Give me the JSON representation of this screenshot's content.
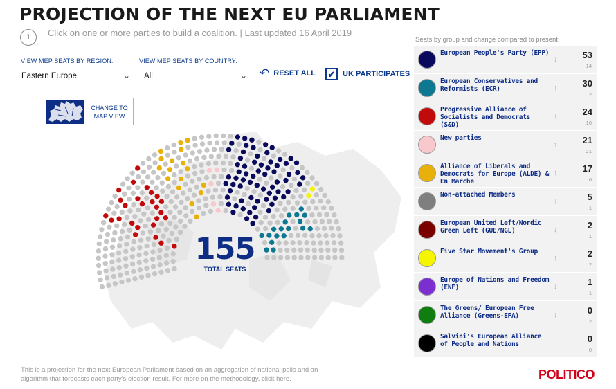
{
  "header": {
    "title": "PROJECTION OF THE NEXT EU PARLIAMENT",
    "subtitle": "Click on one or more parties to build a coalition. | Last updated 16 April 2019",
    "info_icon": "info-icon"
  },
  "filters": {
    "region_label": "VIEW MEP SEATS BY REGION:",
    "region_value": "Eastern Europe",
    "country_label": "VIEW MEP SEATS BY COUNTRY:",
    "country_value": "All",
    "reset_label": "RESET ALL",
    "uk_label": "UK PARTICIPATES",
    "uk_checked": true
  },
  "map_button": {
    "label_line1": "CHANGE TO",
    "label_line2": "MAP VIEW"
  },
  "hemicycle": {
    "total": "155",
    "total_label": "TOTAL SEATS"
  },
  "panel": {
    "heading": "Seats by group and change compared to present:",
    "parties": [
      {
        "name": "European People's Party (EPP)",
        "color": "#0a0a5c",
        "seats": "53",
        "change": "14",
        "trend": "down"
      },
      {
        "name": "European Conservatives and Reformists (ECR)",
        "color": "#0e7891",
        "seats": "30",
        "change": "2",
        "trend": "up"
      },
      {
        "name": "Progressive Alliance of Socialists and Democrats (S&D)",
        "color": "#c30a0a",
        "seats": "24",
        "change": "10",
        "trend": "down"
      },
      {
        "name": "New parties",
        "color": "#f8c8cc",
        "seats": "21",
        "change": "21",
        "trend": "up"
      },
      {
        "name": "Alliance of Liberals and Democrats for Europe (ALDE) & En Marche",
        "color": "#e8b00a",
        "seats": "17",
        "change": "6",
        "trend": "up"
      },
      {
        "name": "Non-attached Members",
        "color": "#7f7f7f",
        "seats": "5",
        "change": "1",
        "trend": "down"
      },
      {
        "name": "European United Left/Nordic Green Left (GUE/NGL)",
        "color": "#7a0000",
        "seats": "2",
        "change": "1",
        "trend": "down"
      },
      {
        "name": "Five Star Movement's Group",
        "color": "#f5f500",
        "seats": "2",
        "change": "2",
        "trend": "up"
      },
      {
        "name": "Europe of Nations and Freedom (ENF)",
        "color": "#7b2fd0",
        "seats": "1",
        "change": "1",
        "trend": "down"
      },
      {
        "name": "The Greens/ European Free Alliance (Greens-EFA)",
        "color": "#0f7d10",
        "seats": "0",
        "change": "2",
        "trend": "down"
      },
      {
        "name": "Salvini's European Alliance of People and Nations",
        "color": "#000000",
        "seats": "0",
        "change": "0",
        "trend": "none"
      }
    ]
  },
  "footnote": "This is a projection for the next European Parliament based on an aggregation of national polls and an algorithm that forecasts each party's election result. For more on the methodology, click here.",
  "logo": "POLITICO"
}
